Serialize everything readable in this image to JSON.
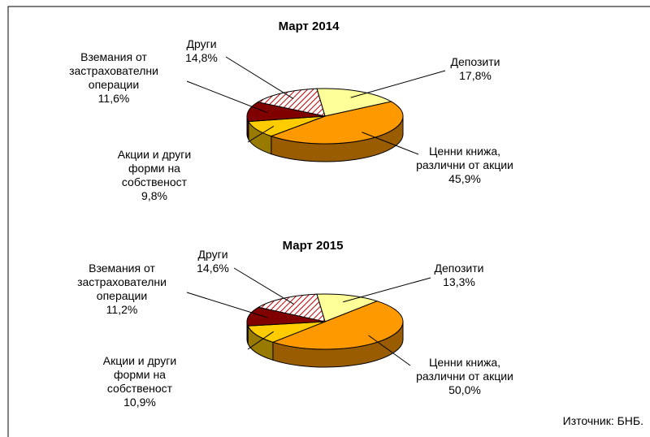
{
  "chart_data": [
    {
      "type": "pie",
      "title": "Март 2014",
      "categories": [
        "Депозити",
        "Ценни книжа,\nразлични от акции",
        "Акции и други\nформи на\nсобственост",
        "Вземания от\nзастрахователни\nоперации",
        "Други"
      ],
      "values": [
        17.8,
        45.9,
        9.8,
        11.6,
        14.8
      ],
      "value_labels": [
        "17,8%",
        "45,9%",
        "9,8%",
        "11,6%",
        "14,8%"
      ],
      "colors": [
        "#ffff99",
        "#ff9900",
        "#ffcc00",
        "#800000",
        "#ffffff"
      ],
      "patterns": [
        null,
        null,
        null,
        null,
        "hatch"
      ]
    },
    {
      "type": "pie",
      "title": "Март 2015",
      "categories": [
        "Депозити",
        "Ценни книжа,\nразлични от акции",
        "Акции и други\nформи на\nсобственост",
        "Вземания от\nзастрахователни\nоперации",
        "Други"
      ],
      "values": [
        13.3,
        50.0,
        10.9,
        11.2,
        14.6
      ],
      "value_labels": [
        "13,3%",
        "50,0%",
        "10,9%",
        "11,2%",
        "14,6%"
      ],
      "colors": [
        "#ffff99",
        "#ff9900",
        "#ffcc00",
        "#800000",
        "#ffffff"
      ],
      "patterns": [
        null,
        null,
        null,
        null,
        "hatch"
      ]
    }
  ],
  "source": "Източник: БНБ."
}
